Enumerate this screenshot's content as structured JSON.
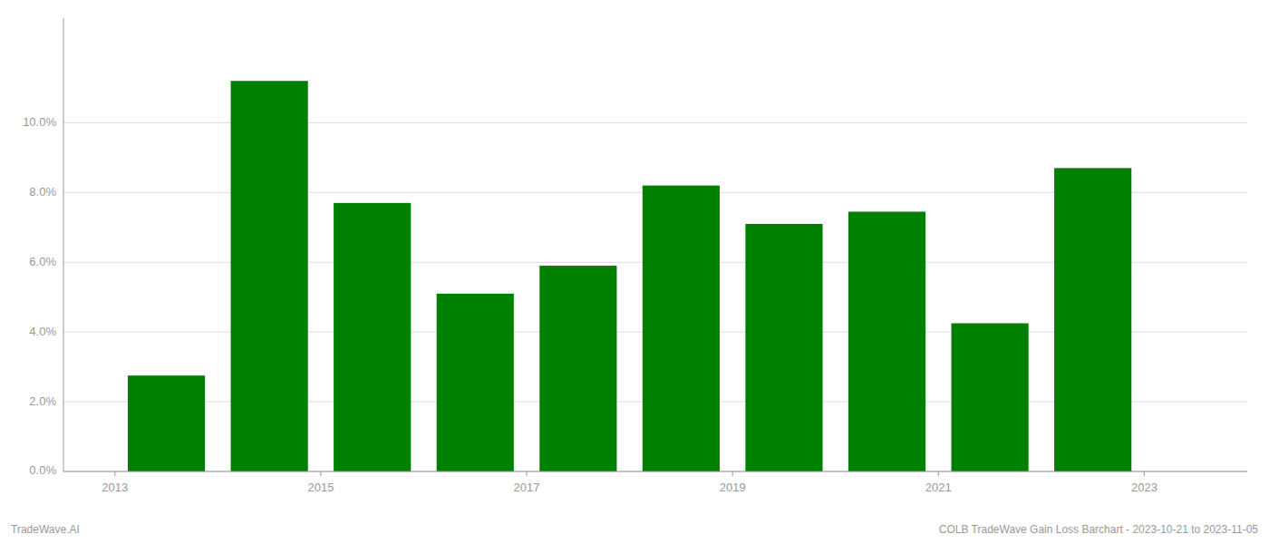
{
  "chart_data": {
    "type": "bar",
    "x": [
      2013,
      2014,
      2015,
      2016,
      2017,
      2018,
      2019,
      2020,
      2021,
      2022
    ],
    "values": [
      0.0275,
      0.112,
      0.077,
      0.051,
      0.059,
      0.082,
      0.071,
      0.0745,
      0.0425,
      0.087
    ],
    "color": "#008000",
    "xlim": [
      2012.0,
      2023.5
    ],
    "xticks": [
      {
        "value": 2012.5,
        "label": "2013"
      },
      {
        "value": 2014.5,
        "label": "2015"
      },
      {
        "value": 2016.5,
        "label": "2017"
      },
      {
        "value": 2018.5,
        "label": "2019"
      },
      {
        "value": 2020.5,
        "label": "2021"
      },
      {
        "value": 2022.5,
        "label": "2023"
      }
    ],
    "ylim": [
      0,
      0.13
    ],
    "yticks": [
      {
        "value": 0.0,
        "label": "0.0%"
      },
      {
        "value": 0.02,
        "label": "2.0%"
      },
      {
        "value": 0.04,
        "label": "4.0%"
      },
      {
        "value": 0.06,
        "label": "6.0%"
      },
      {
        "value": 0.08,
        "label": "8.0%"
      },
      {
        "value": 0.1,
        "label": "10.0%"
      }
    ],
    "grid": true,
    "annotations": [
      "TradeWave.AI",
      "COLB TradeWave Gain Loss Barchart - 2023-10-21 to 2023-11-05"
    ]
  }
}
